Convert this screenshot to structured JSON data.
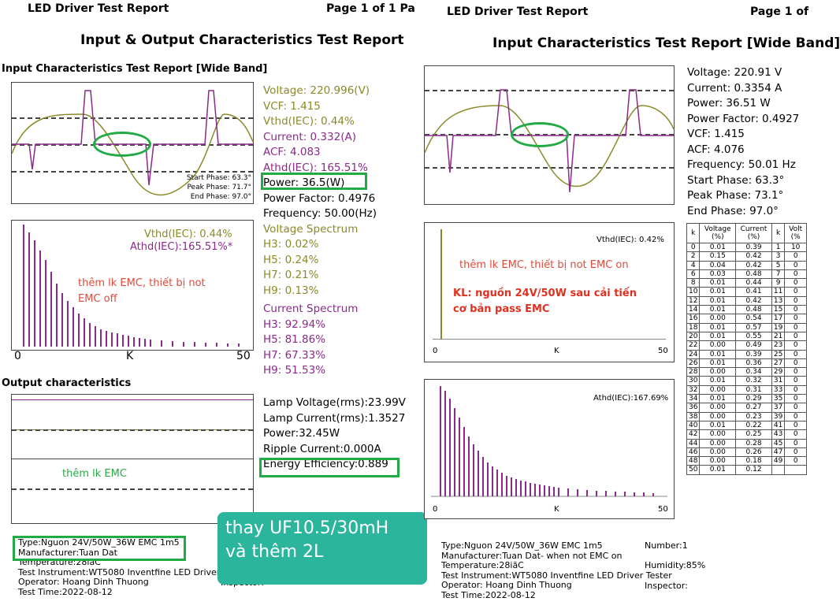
{
  "left": {
    "header_title": "LED Driver Test Report",
    "header_page": "Page 1 of 1 Pa",
    "main_title": "Input & Output Characteristics Test Report",
    "input_title": "Input Characteristics Test Report [Wide Band]",
    "phase": {
      "start": "Start Phase:  63.3°",
      "peak": "Peak Phase:  71.7°",
      "end": "End Phase:  97.0°"
    },
    "voltage": "Voltage: 220.996(V)",
    "vcf": "VCF: 1.415",
    "vthd": "Vthd(IEC):  0.44%",
    "current": "Current: 0.332(A)",
    "acf": "ACF: 4.083",
    "athd": "Athd(IEC): 165.51%",
    "power": "Power:  36.5(W)",
    "power_factor": "Power Factor: 0.4976",
    "frequency": "Frequency: 50.00(Hz)",
    "voltage_spectrum_title": "Voltage Spectrum",
    "voltage_spectrum": [
      "H3:  0.02%",
      "H5:  0.24%",
      "H7:  0.21%",
      "H9:  0.13%"
    ],
    "current_spectrum_title": "Current Spectrum",
    "current_spectrum": [
      "H3:  92.94%",
      "H5:  81.86%",
      "H7:  67.33%",
      "H9:  51.53%"
    ],
    "spectrum_chart": {
      "vthd": "Vthd(IEC): 0.44%",
      "athd": "Athd(IEC):165.51%*",
      "x0": "0",
      "xk": "K",
      "x50": "50"
    },
    "note_emc_off": [
      "thêm lk EMC, thiết bị not",
      "EMC off"
    ],
    "output_title": "Output characteristics",
    "note_emc": "thêm lk EMC",
    "lamp_voltage": "Lamp Voltage(rms):23.99V",
    "lamp_current": "Lamp Current(rms):1.3527",
    "output_power": "Power:32.45W",
    "ripple_current": "Ripple Current:0.000A",
    "energy_efficiency": "Energy Efficiency:0.889",
    "footer": {
      "type": "Type:Nguon 24V/50W_36W EMC 1m5",
      "manufacturer": "Manufacturer:Tuan Dat",
      "temperature": "Temperature:28iãC",
      "instrument": "Test Instrument:WT5080 Inventfine LED Driver",
      "operator": "Operator: Hoang Dinh Thuong",
      "test_time": "Test Time:2022-08-12",
      "inspector": "Inspector:"
    }
  },
  "callout": {
    "line1": "thay UF10.5/30mH",
    "line2": "và thêm 2L"
  },
  "right": {
    "header_title": "LED Driver Test Report",
    "header_page": "Page 1 of",
    "main_title": "Input Characteristics Test Report [Wide Band]",
    "voltage": "Voltage: 220.91 V",
    "current": "Current: 0.3354 A",
    "power": "Power: 36.51 W",
    "power_factor": "Power Factor: 0.4927",
    "vcf": "VCF: 1.415",
    "acf": "ACF: 4.076",
    "frequency": "Frequency: 50.01 Hz",
    "start_phase": "Start Phase:  63.3°",
    "peak_phase": "Peak Phase:  73.1°",
    "end_phase": "End Phase:  97.0°",
    "vthd_chart_label": "Vthd(IEC):  0.42%",
    "athd_chart_label": "Athd(IEC):167.69%",
    "axis": {
      "x0": "0",
      "xk": "K",
      "x50": "50"
    },
    "note_emc_on": "thêm lk EMC, thiết bị not EMC on",
    "note_kl": [
      "KL: nguồn 24V/50W sau cải tiến",
      "cơ bản pass EMC"
    ],
    "table": {
      "headers": [
        "k",
        "Voltage (%)",
        "Current (%)",
        "k",
        "Volt (%"
      ],
      "rows": [
        [
          "0",
          "0.01",
          "0.39",
          "1",
          "10"
        ],
        [
          "2",
          "0.15",
          "0.42",
          "3",
          "0"
        ],
        [
          "4",
          "0.04",
          "0.42",
          "5",
          "0"
        ],
        [
          "6",
          "0.03",
          "0.48",
          "7",
          "0"
        ],
        [
          "8",
          "0.01",
          "0.44",
          "9",
          "0"
        ],
        [
          "10",
          "0.01",
          "0.41",
          "11",
          "0"
        ],
        [
          "12",
          "0.01",
          "0.42",
          "13",
          "0"
        ],
        [
          "14",
          "0.01",
          "0.48",
          "15",
          "0"
        ],
        [
          "16",
          "0.00",
          "0.54",
          "17",
          "0"
        ],
        [
          "18",
          "0.01",
          "0.57",
          "19",
          "0"
        ],
        [
          "20",
          "0.01",
          "0.55",
          "21",
          "0"
        ],
        [
          "22",
          "0.00",
          "0.49",
          "23",
          "0"
        ],
        [
          "24",
          "0.01",
          "0.39",
          "25",
          "0"
        ],
        [
          "26",
          "0.01",
          "0.36",
          "27",
          "0"
        ],
        [
          "28",
          "0.00",
          "0.34",
          "29",
          "0"
        ],
        [
          "30",
          "0.01",
          "0.32",
          "31",
          "0"
        ],
        [
          "32",
          "0.00",
          "0.31",
          "33",
          "0"
        ],
        [
          "34",
          "0.01",
          "0.29",
          "35",
          "0"
        ],
        [
          "36",
          "0.00",
          "0.27",
          "37",
          "0"
        ],
        [
          "38",
          "0.00",
          "0.23",
          "39",
          "0"
        ],
        [
          "40",
          "0.01",
          "0.22",
          "41",
          "0"
        ],
        [
          "42",
          "0.00",
          "0.25",
          "43",
          "0"
        ],
        [
          "44",
          "0.00",
          "0.28",
          "45",
          "0"
        ],
        [
          "46",
          "0.00",
          "0.26",
          "47",
          "0"
        ],
        [
          "48",
          "0.00",
          "0.18",
          "49",
          "0"
        ],
        [
          "50",
          "0.01",
          "0.12",
          "",
          ""
        ]
      ]
    },
    "footer": {
      "type": "Type:Nguon 24V/50W_36W EMC 1m5",
      "number": "Number:1",
      "manufacturer": "Manufacturer:Tuan Dat- when not EMC on",
      "temperature": "Temperature:28iãC",
      "humidity": "Humidity:85%",
      "instrument": "Test Instrument:WT5080 Inventfine LED Driver Tester",
      "operator": "Operator: Hoang Dinh Thuong",
      "inspector": "Inspector:",
      "test_time": "Test Time:2022-08-12"
    }
  },
  "colors": {
    "olive": "#8a8a2a",
    "purple": "#8a2a8a",
    "green_box": "#22aa44",
    "callout": "#2bb59c",
    "note_red": "#e04a3a"
  }
}
